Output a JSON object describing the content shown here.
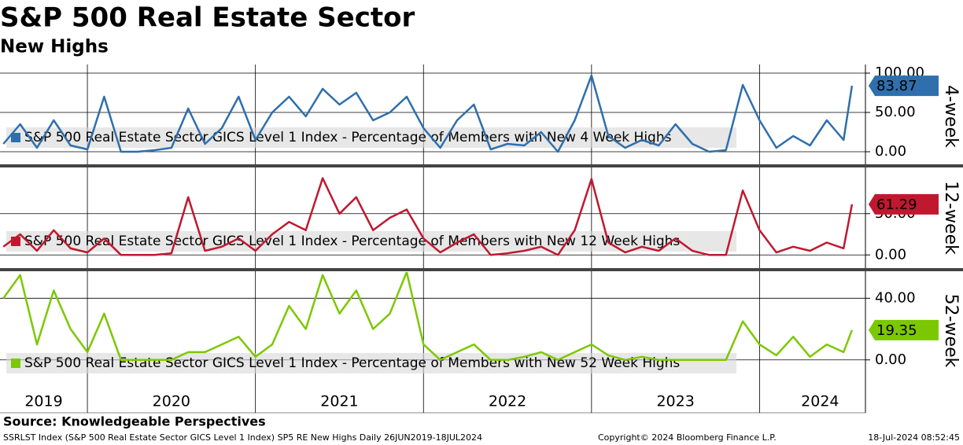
{
  "header": {
    "title": "S&P 500 Real Estate Sector",
    "subtitle": "New Highs"
  },
  "x_axis": {
    "xlim": [
      2019.48,
      2024.63
    ],
    "xticks": [
      {
        "value": 2019.74,
        "label": "2019"
      },
      {
        "value": 2020.5,
        "label": "2020"
      },
      {
        "value": 2021.5,
        "label": "2021"
      },
      {
        "value": 2022.5,
        "label": "2022"
      },
      {
        "value": 2023.5,
        "label": "2023"
      },
      {
        "value": 2024.36,
        "label": "2024"
      }
    ],
    "year_boundaries": [
      2020,
      2021,
      2022,
      2023,
      2024
    ]
  },
  "chart_data": [
    {
      "type": "line",
      "y_label": "4-week",
      "ylim": [
        -15,
        105
      ],
      "yticks": [
        {
          "value": 0,
          "label": "0.00"
        },
        {
          "value": 50,
          "label": "50.00"
        },
        {
          "value": 100,
          "label": "100.00"
        }
      ],
      "x": [
        2019.5,
        2019.6,
        2019.7,
        2019.8,
        2019.9,
        2020.0,
        2020.1,
        2020.2,
        2020.3,
        2020.4,
        2020.5,
        2020.6,
        2020.7,
        2020.8,
        2020.9,
        2021.0,
        2021.1,
        2021.2,
        2021.3,
        2021.4,
        2021.5,
        2021.6,
        2021.7,
        2021.8,
        2021.9,
        2022.0,
        2022.1,
        2022.2,
        2022.3,
        2022.4,
        2022.5,
        2022.6,
        2022.7,
        2022.8,
        2022.9,
        2023.0,
        2023.1,
        2023.2,
        2023.3,
        2023.4,
        2023.5,
        2023.6,
        2023.7,
        2023.8,
        2023.9,
        2024.0,
        2024.1,
        2024.2,
        2024.3,
        2024.4,
        2024.5,
        2024.55
      ],
      "series": [
        {
          "name": "S&P 500 Real Estate Sector GICS Level 1 Index - Percentage of Members with New 4 Week Highs",
          "color": "#2f6fad",
          "values": [
            10,
            35,
            5,
            40,
            8,
            3,
            70,
            0,
            0,
            2,
            5,
            55,
            10,
            30,
            70,
            15,
            50,
            70,
            45,
            80,
            60,
            75,
            40,
            50,
            70,
            30,
            5,
            40,
            60,
            3,
            10,
            8,
            25,
            0,
            40,
            97,
            20,
            5,
            15,
            8,
            35,
            10,
            0,
            2,
            85,
            40,
            5,
            20,
            8,
            40,
            15,
            83.87
          ]
        }
      ]
    },
    {
      "type": "line",
      "y_label": "12-week",
      "ylim": [
        -15,
        105
      ],
      "yticks": [
        {
          "value": 0,
          "label": "0.00"
        },
        {
          "value": 50,
          "label": "50.00"
        }
      ],
      "x": [
        2019.5,
        2019.6,
        2019.7,
        2019.8,
        2019.9,
        2020.0,
        2020.1,
        2020.2,
        2020.3,
        2020.4,
        2020.5,
        2020.6,
        2020.7,
        2020.8,
        2020.9,
        2021.0,
        2021.1,
        2021.2,
        2021.3,
        2021.4,
        2021.5,
        2021.6,
        2021.7,
        2021.8,
        2021.9,
        2022.0,
        2022.1,
        2022.2,
        2022.3,
        2022.4,
        2022.5,
        2022.6,
        2022.7,
        2022.8,
        2022.9,
        2023.0,
        2023.1,
        2023.2,
        2023.3,
        2023.4,
        2023.5,
        2023.6,
        2023.7,
        2023.8,
        2023.9,
        2024.0,
        2024.1,
        2024.2,
        2024.3,
        2024.4,
        2024.5,
        2024.55
      ],
      "series": [
        {
          "name": "S&P 500 Real Estate Sector GICS Level 1 Index - Percentage of Members with New 12 Week Highs",
          "color": "#c0182f",
          "values": [
            10,
            25,
            5,
            30,
            8,
            3,
            20,
            0,
            0,
            0,
            2,
            70,
            5,
            10,
            20,
            5,
            25,
            40,
            30,
            93,
            50,
            70,
            30,
            45,
            55,
            20,
            3,
            15,
            25,
            0,
            2,
            5,
            10,
            0,
            30,
            92,
            15,
            3,
            10,
            5,
            20,
            5,
            0,
            0,
            78,
            30,
            3,
            10,
            5,
            15,
            8,
            61.29
          ]
        }
      ]
    },
    {
      "type": "line",
      "y_label": "52-week",
      "ylim": [
        -19,
        57
      ],
      "yticks": [
        {
          "value": 0,
          "label": "0.00"
        },
        {
          "value": 40,
          "label": "40.00"
        }
      ],
      "x": [
        2019.5,
        2019.6,
        2019.7,
        2019.8,
        2019.9,
        2020.0,
        2020.1,
        2020.2,
        2020.3,
        2020.4,
        2020.5,
        2020.6,
        2020.7,
        2020.8,
        2020.9,
        2021.0,
        2021.1,
        2021.2,
        2021.3,
        2021.4,
        2021.5,
        2021.6,
        2021.7,
        2021.8,
        2021.9,
        2022.0,
        2022.1,
        2022.2,
        2022.3,
        2022.4,
        2022.5,
        2022.6,
        2022.7,
        2022.8,
        2022.9,
        2023.0,
        2023.1,
        2023.2,
        2023.3,
        2023.4,
        2023.5,
        2023.6,
        2023.7,
        2023.8,
        2023.9,
        2024.0,
        2024.1,
        2024.2,
        2024.3,
        2024.4,
        2024.5,
        2024.55
      ],
      "series": [
        {
          "name": "S&P 500 Real Estate Sector GICS Level 1 Index - Percentage of Members with New 52 Week Highs",
          "color": "#7cc800",
          "values": [
            40,
            55,
            10,
            45,
            20,
            5,
            30,
            0,
            0,
            0,
            0,
            5,
            5,
            10,
            15,
            2,
            10,
            35,
            20,
            55,
            30,
            45,
            20,
            30,
            57,
            10,
            0,
            5,
            10,
            0,
            0,
            2,
            5,
            0,
            5,
            10,
            3,
            0,
            2,
            0,
            0,
            0,
            0,
            0,
            25,
            10,
            3,
            15,
            2,
            10,
            5,
            19.35
          ]
        }
      ]
    }
  ],
  "footer": {
    "source": "Source: Knowledgeable Perspectives",
    "description": "SSRLST Index (S&P 500 Real Estate Sector GICS Level 1 Index) SP5 RE New Highs  Daily 26JUN2019-18JUL2024",
    "copyright": "Copyright© 2024 Bloomberg Finance L.P.",
    "timestamp": "18-Jul-2024 08:52:45"
  }
}
